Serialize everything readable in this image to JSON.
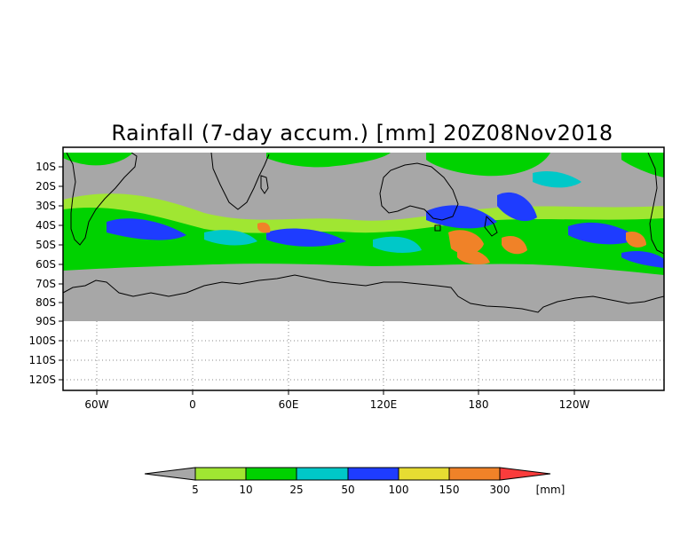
{
  "title": "Rainfall (7-day accum.) [mm] 20Z08Nov2018",
  "latitude_labels": [
    "10S",
    "20S",
    "30S",
    "40S",
    "50S",
    "60S",
    "70S",
    "80S",
    "90S",
    "100S",
    "110S",
    "120S"
  ],
  "longitude_labels": [
    "60W",
    "0",
    "60E",
    "120E",
    "180",
    "120W"
  ],
  "colorbar": {
    "unit": "[mm]",
    "thresholds": [
      "5",
      "10",
      "25",
      "50",
      "100",
      "150",
      "300"
    ],
    "colors": [
      "#a7a7a7",
      "#a0e632",
      "#00d200",
      "#00c8c8",
      "#1e3cff",
      "#e6dc32",
      "#f08228",
      "#fa3c3c"
    ]
  },
  "map_colors": {
    "no_data": "#a7a7a7",
    "ocean_background": "#a7a7a7",
    "coastline": "#000000",
    "gridline": "#888888"
  }
}
